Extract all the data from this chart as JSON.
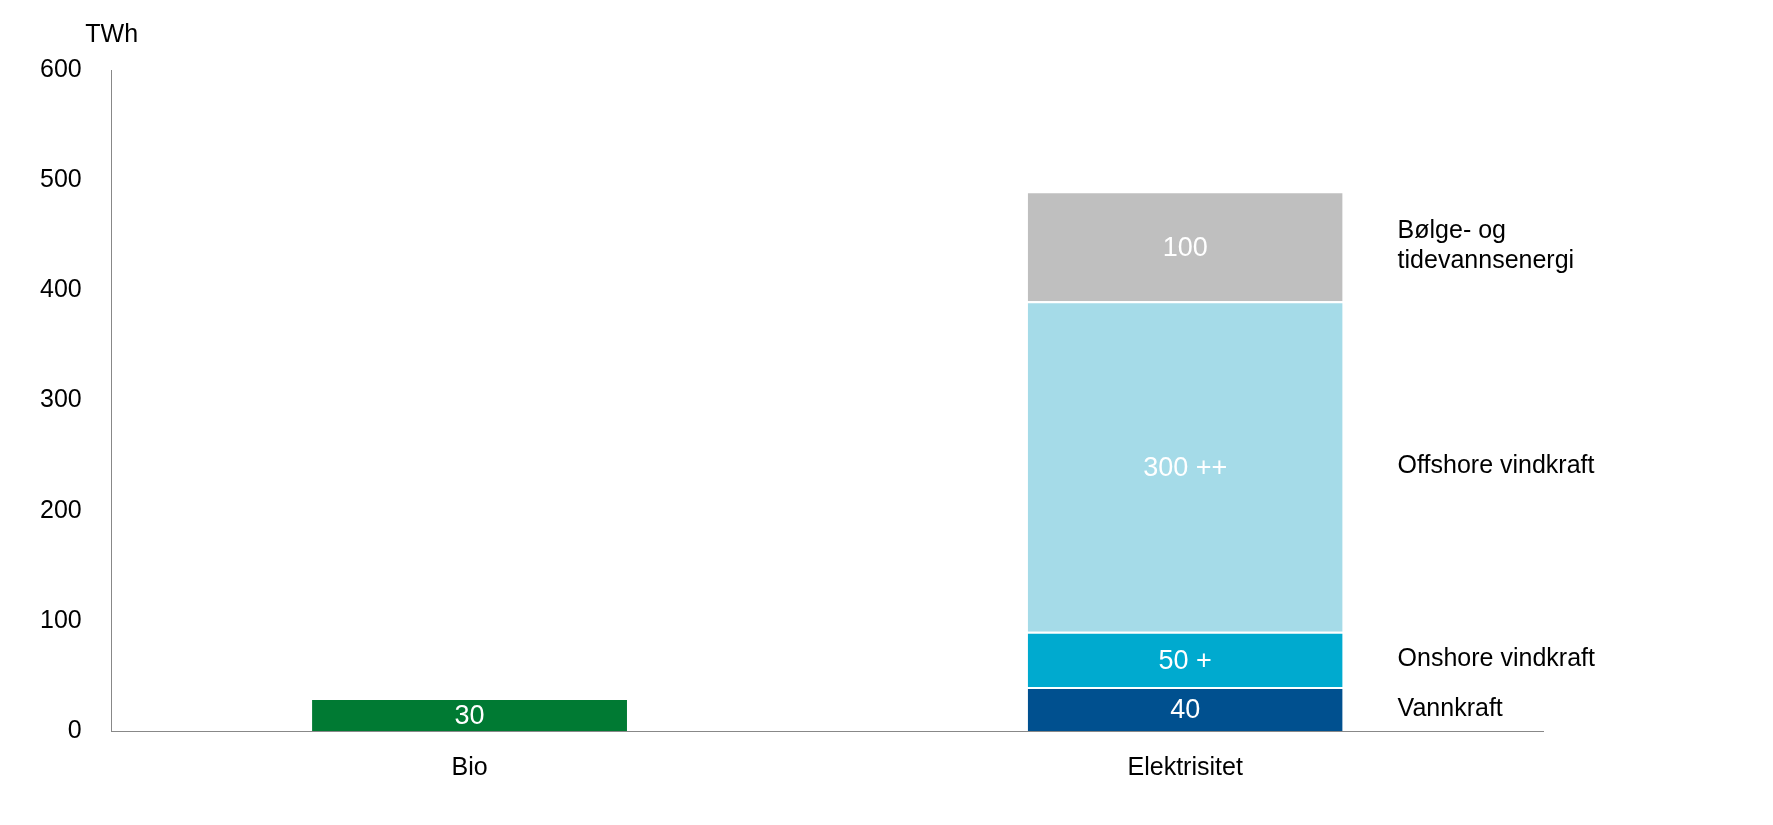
{
  "chart_data": {
    "type": "bar",
    "stacked": true,
    "ylabel": "TWh",
    "categories": [
      "Bio",
      "Elektrisitet"
    ],
    "series": [
      {
        "color": "#007a33",
        "values": [
          30,
          null
        ],
        "value_labels": [
          "30",
          null
        ]
      },
      {
        "name": "Vannkraft",
        "color": "#00508f",
        "values": [
          null,
          40
        ],
        "value_labels": [
          null,
          "40"
        ]
      },
      {
        "name": "Onshore vindkraft",
        "color": "#00aacf",
        "values": [
          null,
          50
        ],
        "value_labels": [
          null,
          "50 +"
        ]
      },
      {
        "name": "Offshore vindkraft",
        "color": "#a5dbe8",
        "values": [
          null,
          300
        ],
        "value_labels": [
          null,
          "300 ++"
        ]
      },
      {
        "name": "Bølge- og tidevannsenergi",
        "color": "#bfbfbf",
        "values": [
          null,
          100
        ],
        "value_labels": [
          null,
          "100"
        ]
      }
    ],
    "ylim": [
      0,
      600
    ],
    "yticks": [
      0,
      100,
      200,
      300,
      400,
      500,
      600
    ],
    "grid": false,
    "legend": false
  }
}
